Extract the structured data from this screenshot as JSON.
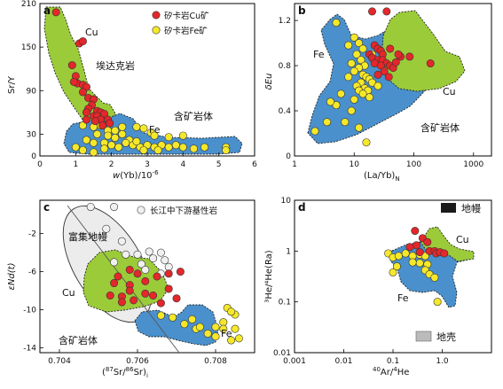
{
  "colors": {
    "cu": "#e3272a",
    "fe": "#f5e82a",
    "fe_field": "#4a90cc",
    "cu_field": "#9ccb3a",
    "mantle_box": "#1a1a1a",
    "crust_box": "#bbbbbb",
    "basic_rock": "#f0f0f0"
  },
  "chart_data": [
    {
      "panel": "a",
      "type": "scatter",
      "xlabel_pre": "w",
      "xlabel_paren": "(Yb)",
      "xlabel_unit": "/10",
      "xlabel_exp": "-6",
      "ylabel": "Sr/Y",
      "xlim": [
        0,
        6
      ],
      "ylim": [
        0,
        210
      ],
      "xticks": [
        "0",
        "1",
        "2",
        "3",
        "4",
        "5",
        "6"
      ],
      "yticks": [
        "0",
        "30",
        "90",
        "150",
        "210"
      ],
      "legend": {
        "cu": "矽卡岩Cu矿",
        "fe": "矽卡岩Fe矿"
      },
      "labels": {
        "cu": "Cu",
        "adakite": "埃达克岩",
        "fe": "Fe",
        "ore": "含矿岩体"
      },
      "cu_points": [
        [
          0.45,
          198
        ],
        [
          1.1,
          155
        ],
        [
          1.2,
          158
        ],
        [
          0.9,
          125
        ],
        [
          1.0,
          110
        ],
        [
          1.05,
          100
        ],
        [
          1.2,
          98
        ],
        [
          1.3,
          95
        ],
        [
          0.95,
          102
        ],
        [
          1.2,
          88
        ],
        [
          1.35,
          80
        ],
        [
          1.5,
          78
        ],
        [
          1.45,
          70
        ],
        [
          1.35,
          65
        ],
        [
          1.6,
          62
        ],
        [
          1.7,
          60
        ],
        [
          1.3,
          60
        ],
        [
          1.5,
          55
        ],
        [
          1.6,
          55
        ],
        [
          1.8,
          58
        ],
        [
          1.7,
          50
        ],
        [
          1.55,
          48
        ],
        [
          1.9,
          50
        ],
        [
          1.75,
          42
        ],
        [
          1.95,
          45
        ],
        [
          1.3,
          50
        ]
      ],
      "fe_points": [
        [
          1.2,
          42
        ],
        [
          1.5,
          40
        ],
        [
          1.7,
          42
        ],
        [
          1.9,
          35
        ],
        [
          2.1,
          35
        ],
        [
          2.3,
          40
        ],
        [
          2.7,
          40
        ],
        [
          2.9,
          38
        ],
        [
          3.1,
          32
        ],
        [
          1.6,
          30
        ],
        [
          2.3,
          30
        ],
        [
          1.9,
          28
        ],
        [
          2.1,
          25
        ],
        [
          2.5,
          22
        ],
        [
          3.2,
          28
        ],
        [
          3.6,
          26
        ],
        [
          4.0,
          28
        ],
        [
          1.3,
          22
        ],
        [
          1.5,
          18
        ],
        [
          1.8,
          18
        ],
        [
          2.0,
          15
        ],
        [
          2.2,
          12
        ],
        [
          2.4,
          18
        ],
        [
          2.6,
          15
        ],
        [
          2.8,
          12
        ],
        [
          3.0,
          15
        ],
        [
          3.2,
          12
        ],
        [
          3.4,
          15
        ],
        [
          3.6,
          12
        ],
        [
          3.8,
          15
        ],
        [
          4.0,
          12
        ],
        [
          4.3,
          10
        ],
        [
          4.6,
          12
        ],
        [
          5.2,
          12
        ],
        [
          5.2,
          8
        ],
        [
          1.0,
          12
        ],
        [
          1.2,
          8
        ],
        [
          1.5,
          5
        ],
        [
          1.8,
          10
        ],
        [
          2.9,
          8
        ],
        [
          3.3,
          8
        ],
        [
          2.7,
          20
        ]
      ]
    },
    {
      "panel": "b",
      "type": "scatter",
      "xlabel": "(La/Yb)",
      "xlabel_sub": "N",
      "ylabel": "δEu",
      "xlim": [
        1,
        2000
      ],
      "ylim": [
        0,
        1.35
      ],
      "xscale": "log",
      "xticks": [
        "1",
        "10",
        "100",
        "1000"
      ],
      "yticks": [
        "0",
        "0.4",
        "0.8",
        "1.2"
      ],
      "labels": {
        "fe": "Fe",
        "cu": "Cu",
        "ore": "含矿岩体"
      },
      "cu_points": [
        [
          20,
          1.28
        ],
        [
          35,
          1.28
        ],
        [
          22,
          0.98
        ],
        [
          25,
          0.95
        ],
        [
          28,
          0.93
        ],
        [
          30,
          0.9
        ],
        [
          18,
          0.9
        ],
        [
          20,
          0.87
        ],
        [
          25,
          0.85
        ],
        [
          30,
          0.85
        ],
        [
          35,
          0.82
        ],
        [
          22,
          0.82
        ],
        [
          28,
          0.8
        ],
        [
          40,
          0.8
        ],
        [
          45,
          0.78
        ],
        [
          50,
          0.83
        ],
        [
          60,
          0.88
        ],
        [
          32,
          0.75
        ],
        [
          25,
          0.72
        ],
        [
          38,
          0.7
        ],
        [
          190,
          0.82
        ],
        [
          85,
          0.88
        ],
        [
          55,
          0.9
        ],
        [
          40,
          0.95
        ]
      ],
      "fe_points": [
        [
          10,
          1.05
        ],
        [
          12,
          1.0
        ],
        [
          8,
          0.98
        ],
        [
          14,
          0.95
        ],
        [
          11,
          0.9
        ],
        [
          13,
          0.85
        ],
        [
          15,
          0.8
        ],
        [
          12,
          0.78
        ],
        [
          10,
          0.75
        ],
        [
          14,
          0.72
        ],
        [
          16,
          0.7
        ],
        [
          18,
          0.68
        ],
        [
          20,
          0.65
        ],
        [
          13,
          0.65
        ],
        [
          11,
          0.62
        ],
        [
          15,
          0.6
        ],
        [
          17,
          0.58
        ],
        [
          12,
          0.58
        ],
        [
          14,
          0.55
        ],
        [
          9,
          0.82
        ],
        [
          8,
          0.7
        ],
        [
          6,
          0.55
        ],
        [
          5,
          0.45
        ],
        [
          4,
          0.48
        ],
        [
          3.5,
          0.3
        ],
        [
          2.2,
          0.22
        ],
        [
          7,
          0.3
        ],
        [
          12,
          0.25
        ],
        [
          16,
          0.12
        ],
        [
          5,
          1.18
        ],
        [
          20,
          0.9
        ],
        [
          18,
          0.52
        ],
        [
          10,
          0.5
        ],
        [
          9,
          0.4
        ],
        [
          25,
          0.62
        ]
      ]
    },
    {
      "panel": "c",
      "type": "scatter",
      "xlabel_pre": "(",
      "xlabel_sup1": "87",
      "xlabel_mid": "Sr/",
      "xlabel_sup2": "86",
      "xlabel_post": "Sr)",
      "xlabel_sub": "i",
      "ylabel": "εNd(t)",
      "xlim": [
        0.7035,
        0.709
      ],
      "ylim": [
        -14.5,
        1.5
      ],
      "xticks": [
        "0.704",
        "0.706",
        "0.708"
      ],
      "yticks": [
        "-2",
        "-6",
        "-10",
        "-14"
      ],
      "legend": {
        "basic": "长江中下游基性岩"
      },
      "labels": {
        "mantle": "富集地幔",
        "cu": "Cu",
        "fe": "Fe",
        "ore": "含矿岩体"
      },
      "basic_points": [
        [
          0.7048,
          0.8
        ],
        [
          0.7054,
          0.8
        ],
        [
          0.7052,
          -1.5
        ],
        [
          0.7056,
          -2.8
        ],
        [
          0.706,
          -4.2
        ],
        [
          0.7063,
          -3.9
        ],
        [
          0.7066,
          -4.0
        ],
        [
          0.7064,
          -4.6
        ],
        [
          0.7067,
          -4.8
        ],
        [
          0.7061,
          -5.2
        ],
        [
          0.7062,
          -5.8
        ],
        [
          0.7066,
          -6.2
        ],
        [
          0.7068,
          -5.5
        ],
        [
          0.7057,
          -4.2
        ],
        [
          0.7054,
          -5.0
        ]
      ],
      "cu_points": [
        [
          0.7055,
          -6.5
        ],
        [
          0.7058,
          -5.8
        ],
        [
          0.706,
          -6.2
        ],
        [
          0.7054,
          -7.2
        ],
        [
          0.7058,
          -7.4
        ],
        [
          0.7062,
          -7.0
        ],
        [
          0.7065,
          -6.5
        ],
        [
          0.7068,
          -6.2
        ],
        [
          0.7071,
          -6.0
        ],
        [
          0.7058,
          -8.0
        ],
        [
          0.7062,
          -8.3
        ],
        [
          0.7068,
          -7.8
        ],
        [
          0.7053,
          -8.5
        ],
        [
          0.7056,
          -8.6
        ],
        [
          0.7064,
          -8.5
        ],
        [
          0.707,
          -8.8
        ],
        [
          0.7056,
          -9.2
        ],
        [
          0.7059,
          -9.0
        ],
        [
          0.7066,
          -9.3
        ]
      ],
      "fe_points": [
        [
          0.7066,
          -10.6
        ],
        [
          0.7069,
          -10.8
        ],
        [
          0.7072,
          -11.5
        ],
        [
          0.7074,
          -11.0
        ],
        [
          0.7075,
          -12.0
        ],
        [
          0.7078,
          -12.5
        ],
        [
          0.708,
          -12.8
        ],
        [
          0.7082,
          -11.3
        ],
        [
          0.7082,
          -12.0
        ],
        [
          0.7084,
          -13.2
        ],
        [
          0.7085,
          -10.5
        ],
        [
          0.7085,
          -12.0
        ],
        [
          0.7083,
          -9.8
        ],
        [
          0.7076,
          -11.8
        ],
        [
          0.708,
          -11.8
        ],
        [
          0.7086,
          -13.0
        ],
        [
          0.7084,
          -10.2
        ]
      ]
    },
    {
      "panel": "d",
      "type": "scatter",
      "xlabel_sup": "40",
      "xlabel_main": "Ar/",
      "xlabel_sup2": "4",
      "xlabel_post": "He",
      "ylabel": "³He/⁴He(Ra)",
      "xlim": [
        0.001,
        10
      ],
      "ylim": [
        0.01,
        10
      ],
      "xscale": "log",
      "yscale": "log",
      "xticks": [
        "0.001",
        "0.01",
        "0.1",
        "1.0"
      ],
      "yticks": [
        "0.01",
        "0.1",
        "1",
        "10"
      ],
      "labels": {
        "mantle": "地幔",
        "crust": "地壳",
        "cu": "Cu",
        "fe": "Fe"
      },
      "cu_points": [
        [
          0.28,
          2.5
        ],
        [
          0.4,
          1.8
        ],
        [
          0.5,
          1.5
        ],
        [
          0.3,
          1.3
        ],
        [
          0.55,
          1.0
        ],
        [
          0.22,
          1.2
        ],
        [
          0.7,
          1.0
        ],
        [
          0.75,
          0.9
        ],
        [
          0.9,
          0.95
        ],
        [
          1.1,
          0.9
        ],
        [
          0.35,
          0.95
        ]
      ],
      "fe_points": [
        [
          0.08,
          0.9
        ],
        [
          0.1,
          0.75
        ],
        [
          0.13,
          0.8
        ],
        [
          0.18,
          0.9
        ],
        [
          0.25,
          0.8
        ],
        [
          0.35,
          0.85
        ],
        [
          0.45,
          0.8
        ],
        [
          0.12,
          0.5
        ],
        [
          0.1,
          0.38
        ],
        [
          0.35,
          0.58
        ],
        [
          0.5,
          0.55
        ],
        [
          0.25,
          0.6
        ],
        [
          0.45,
          0.42
        ],
        [
          0.55,
          0.35
        ],
        [
          0.7,
          0.3
        ],
        [
          0.8,
          0.1
        ]
      ]
    }
  ]
}
